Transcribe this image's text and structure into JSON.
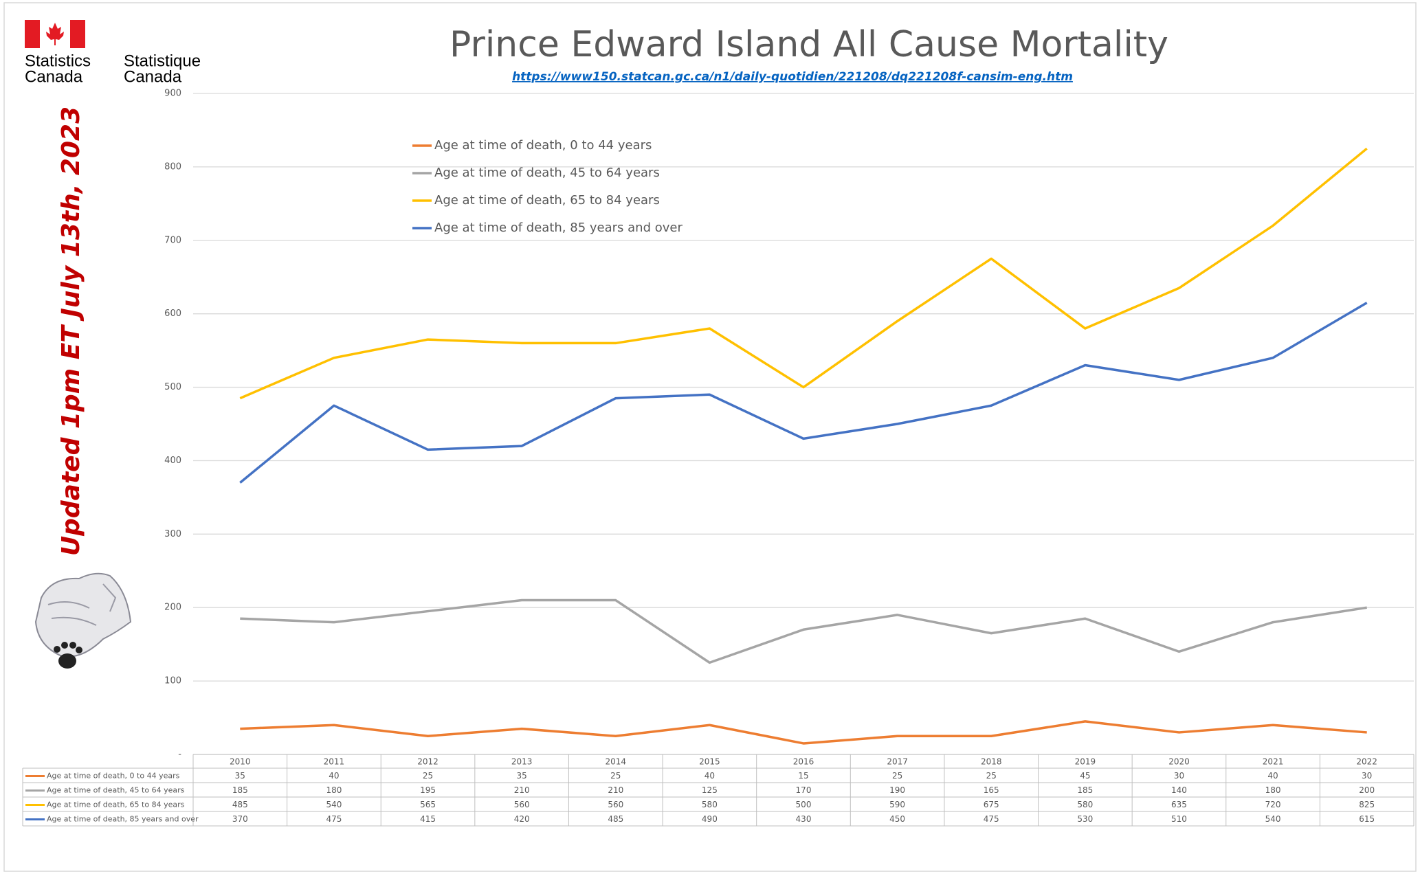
{
  "chart_data": {
    "type": "line",
    "title": "Prince Edward Island All Cause Mortality",
    "subtitle": "https://www150.statcan.gc.ca/n1/daily-quotidien/221208/dq221208f-cansim-eng.htm",
    "annotation": "Updated 1pm ET July 13th, 2023",
    "logo_text": [
      [
        "Statistics",
        "Canada"
      ],
      [
        "Statistique",
        "Canada"
      ]
    ],
    "categories": [
      "2010",
      "2011",
      "2012",
      "2013",
      "2014",
      "2015",
      "2016",
      "2017",
      "2018",
      "2019",
      "2020",
      "2021",
      "2022"
    ],
    "series": [
      {
        "name": "Age at time of death, 0 to 44 years",
        "color": "#ed7d31",
        "values": [
          35,
          40,
          25,
          35,
          25,
          40,
          15,
          25,
          25,
          45,
          30,
          40,
          30
        ]
      },
      {
        "name": "Age at time of death, 45 to 64 years",
        "color": "#a5a5a5",
        "values": [
          185,
          180,
          195,
          210,
          210,
          125,
          170,
          190,
          165,
          185,
          140,
          180,
          200
        ]
      },
      {
        "name": "Age at time of death, 65 to 84 years",
        "color": "#ffc000",
        "values": [
          485,
          540,
          565,
          560,
          560,
          580,
          500,
          590,
          675,
          580,
          635,
          720,
          825
        ]
      },
      {
        "name": "Age at time of death, 85 years and over",
        "color": "#4472c4",
        "values": [
          370,
          475,
          415,
          420,
          485,
          490,
          430,
          450,
          475,
          530,
          510,
          540,
          615
        ]
      }
    ],
    "ylim": [
      0,
      900
    ],
    "yticks": [
      {
        "value": 0,
        "label": "-"
      },
      100,
      200,
      300,
      400,
      500,
      600,
      700,
      800,
      900
    ],
    "grid": true,
    "legend": "upper-left",
    "data_table": true
  }
}
